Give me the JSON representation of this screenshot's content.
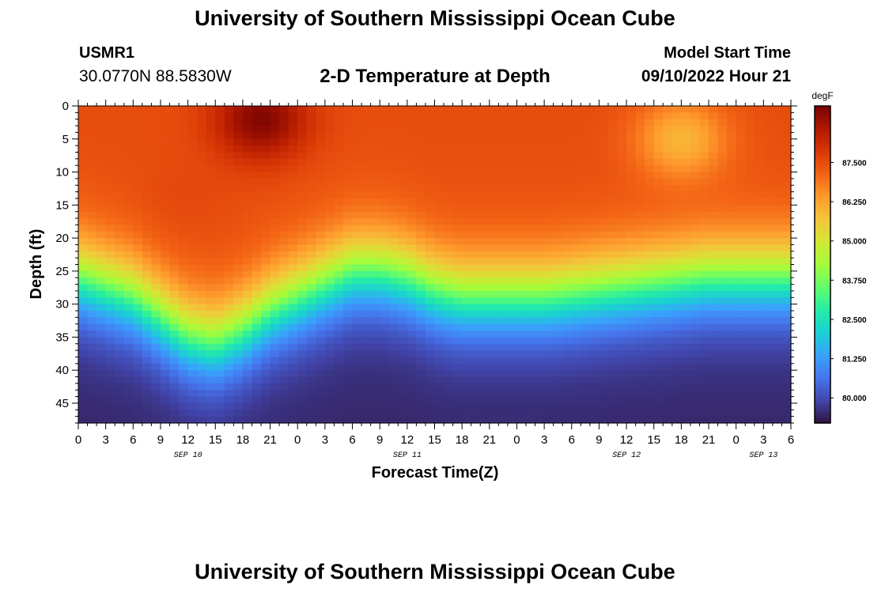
{
  "header": {
    "title": "University of Southern Mississippi Ocean Cube",
    "station_id": "USMR1",
    "station_coords": "30.0770N  88.5830W",
    "subtitle": "2-D Temperature at Depth",
    "model_start_label": "Model Start Time",
    "model_start_value": "09/10/2022 Hour 21"
  },
  "footer": {
    "title": "University of Southern Mississippi Ocean Cube"
  },
  "chart_data": {
    "type": "heatmap",
    "title": "2-D Temperature at Depth",
    "xlabel": "Forecast Time(Z)",
    "ylabel": "Depth (ft)",
    "x_hours_from_sep10_00z_range": [
      0,
      78
    ],
    "ylim": [
      0,
      48
    ],
    "y_inverted": true,
    "x_tick_labels": [
      "0",
      "3",
      "6",
      "9",
      "12",
      "15",
      "18",
      "21",
      "0",
      "3",
      "6",
      "9",
      "12",
      "15",
      "18",
      "21",
      "0",
      "3",
      "6",
      "9",
      "12",
      "15",
      "18",
      "21",
      "0",
      "3",
      "6"
    ],
    "date_labels": [
      {
        "label": "SEP 10",
        "hour": 12
      },
      {
        "label": "SEP 11",
        "hour": 36
      },
      {
        "label": "SEP 12",
        "hour": 60
      },
      {
        "label": "SEP 13",
        "hour": 75
      }
    ],
    "y_ticks": [
      0,
      5,
      10,
      15,
      20,
      25,
      30,
      35,
      40,
      45
    ],
    "colorbar": {
      "unit": "degF",
      "min": 79.2,
      "max": 89.3,
      "labels": [
        "87.500",
        "86.250",
        "85.000",
        "83.750",
        "82.500",
        "81.250",
        "80.000"
      ],
      "label_values": [
        87.5,
        86.25,
        85.0,
        83.75,
        82.5,
        81.25,
        80.0
      ],
      "colormap": [
        "#30123b",
        "#4145ab",
        "#4675ed",
        "#39a2fc",
        "#1bcfd4",
        "#24eca6",
        "#61fc6c",
        "#a4fc3b",
        "#d1e834",
        "#f3c63a",
        "#fe9b2d",
        "#f36315",
        "#d93806",
        "#b11901",
        "#7a0402"
      ]
    },
    "thermocline_depth_ft": {
      "hours": [
        0,
        6,
        9,
        12,
        15,
        18,
        21,
        24,
        27,
        30,
        33,
        36,
        39,
        42,
        45,
        48,
        51,
        54,
        57,
        60,
        63,
        66,
        69,
        72,
        75,
        78
      ],
      "values": [
        26,
        29,
        32,
        35,
        36,
        34,
        31,
        29,
        27,
        25,
        25,
        26,
        28,
        29,
        29,
        29,
        29,
        28.5,
        28,
        27.5,
        27,
        26.5,
        26,
        26,
        26,
        26
      ]
    },
    "surface_hotspots": [
      {
        "hour": 20,
        "depth_ft": 2,
        "temp_f": 89.2
      },
      {
        "hour": 66,
        "depth_ft": 5,
        "temp_f": 86.0
      },
      {
        "hour": 11,
        "depth_ft": 15,
        "temp_f": 87.6
      }
    ],
    "mixed_layer_temp_f": 87.5,
    "bottom_temp_f": 79.5
  }
}
